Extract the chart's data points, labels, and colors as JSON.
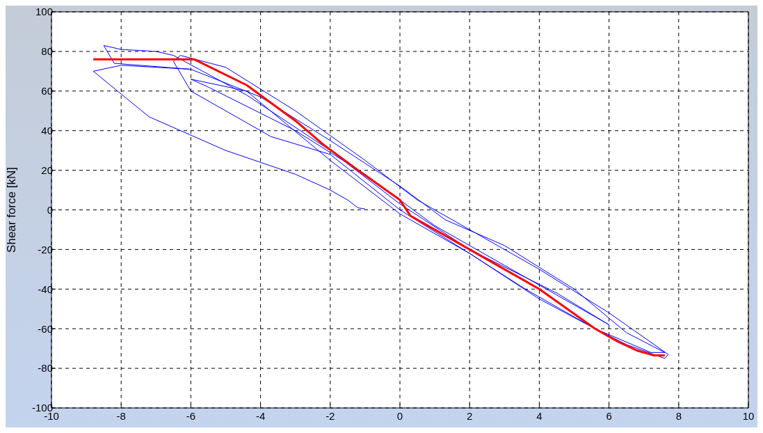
{
  "chart_data": {
    "type": "line",
    "ylabel": "Shear force [kN]",
    "xlim": [
      -10,
      10
    ],
    "xticks": [
      -10,
      -8,
      -6,
      -4,
      -2,
      0,
      2,
      4,
      6,
      8,
      10
    ],
    "ylim": [
      -100,
      100
    ],
    "yticks": [
      -100,
      -80,
      -60,
      -40,
      -20,
      0,
      20,
      40,
      60,
      80,
      100
    ],
    "grid": true,
    "marker": "none",
    "series": [
      {
        "color": "#0000ff",
        "x": [
          -1,
          -1.2,
          -1.5,
          -2,
          -3,
          -5,
          -7.2,
          -8.8,
          -8,
          -6,
          -4,
          -2,
          0,
          1.3,
          3,
          5,
          6.5,
          7.6,
          7.2,
          5.6,
          3.6,
          2,
          0,
          -2,
          -3.7,
          -4,
          -6,
          -6.5,
          -6.3,
          -5,
          -3,
          -1,
          0.5,
          2,
          4,
          6,
          7.7,
          7.6,
          6.5,
          5.6,
          4,
          2,
          0,
          -2,
          -4.4,
          -6,
          -5.5,
          -3,
          -1,
          1,
          3,
          5,
          6,
          4.5,
          2,
          0,
          -2,
          -4.4,
          -6.5,
          -7,
          -8,
          -8.5,
          -8.2,
          -6
        ],
        "values": [
          0.5,
          1,
          5,
          10,
          18,
          30,
          47,
          70,
          73,
          71,
          57,
          35,
          12,
          -5,
          -18,
          -40,
          -62,
          -72,
          -72,
          -60,
          -40,
          -22,
          0,
          28,
          37,
          40,
          60,
          75,
          78,
          72,
          50,
          25,
          5,
          -10,
          -30,
          -52,
          -73,
          -75,
          -68,
          -60,
          -45,
          -22,
          -2,
          25,
          60,
          66,
          62,
          40,
          18,
          -8,
          -28,
          -48,
          -58,
          -42,
          -20,
          3,
          30,
          58,
          78,
          80,
          81,
          83,
          74,
          71
        ]
      },
      {
        "color": "#ff0000",
        "x": [
          -8.8,
          -5.9,
          -4.4,
          -3,
          -2.2,
          -1.2,
          0,
          0.3,
          1.5,
          3,
          4,
          5.6,
          6.2,
          6.8,
          7.3,
          7.6
        ],
        "values": [
          76,
          76,
          63,
          45,
          33,
          20,
          5,
          -3,
          -15,
          -30,
          -40,
          -60,
          -66,
          -71,
          -73.5,
          -73.5
        ]
      }
    ]
  }
}
